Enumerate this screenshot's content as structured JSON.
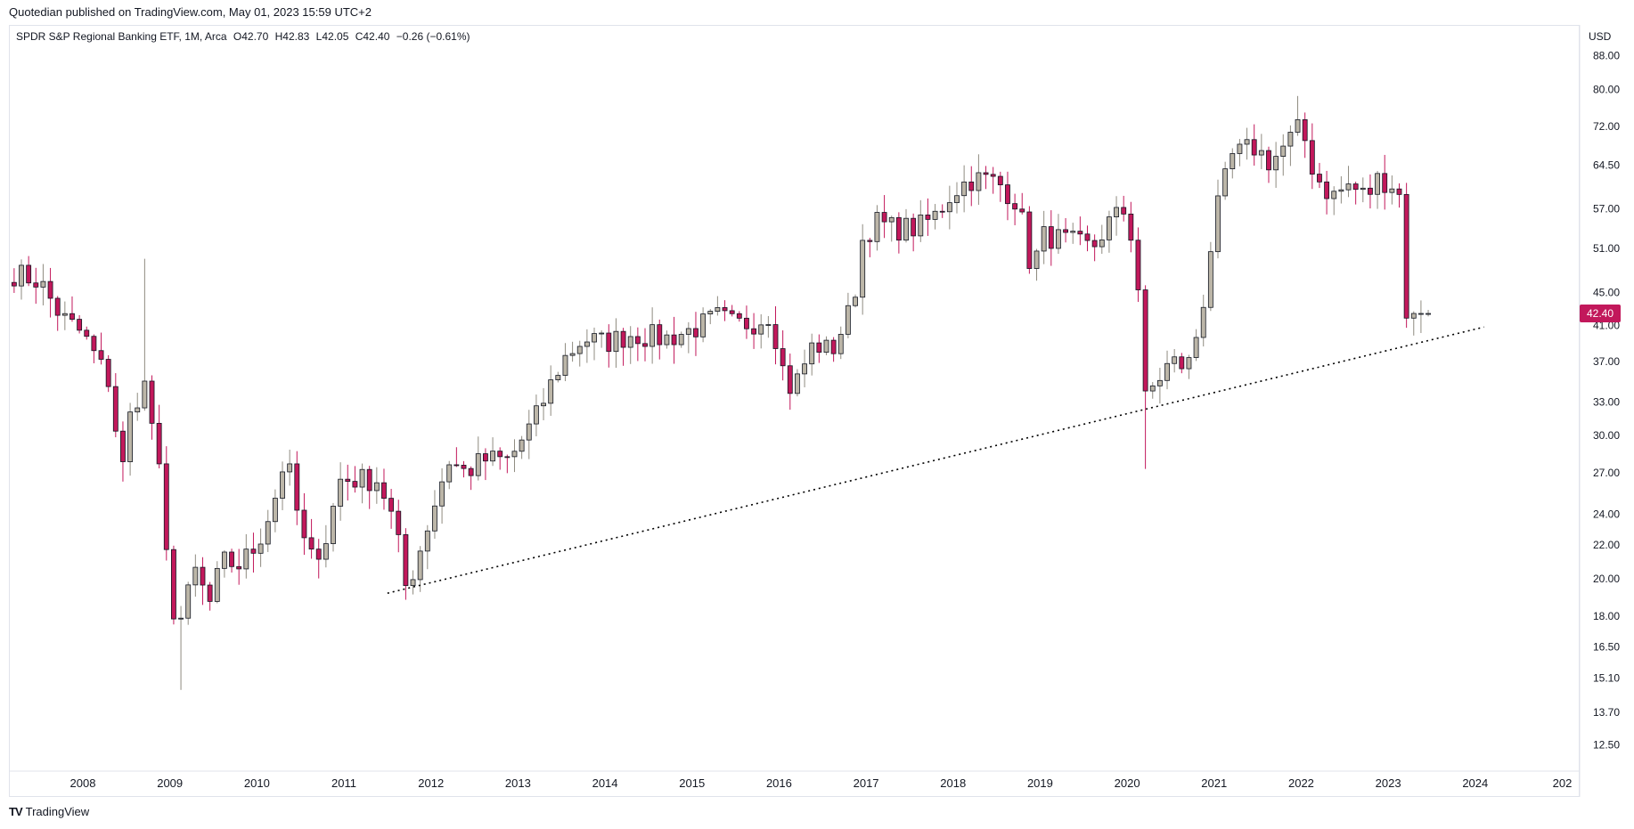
{
  "header": {
    "published": "Quotedian published on TradingView.com, May 01, 2023 15:59 UTC+2"
  },
  "legend": {
    "symbol": "SPDR S&P Regional Banking ETF, 1M, Arca",
    "open": "O42.70",
    "high": "H42.83",
    "low": "L42.05",
    "close": "C42.40",
    "change": "−0.26 (−0.61%)"
  },
  "currency": "USD",
  "last_price_label": "42.40",
  "brand": {
    "name": "TradingView",
    "logo": "TV"
  },
  "colors": {
    "up": "#bcb6a8",
    "down": "#c2185b",
    "badge": "#c2185b",
    "trend": "#000000"
  },
  "chart_data": {
    "type": "candlestick",
    "y_scale": "log",
    "ylim": [
      11.6,
      96
    ],
    "xlim": [
      2007.15,
      2025.2
    ],
    "y_ticks": [
      "88.00",
      "80.00",
      "72.00",
      "64.50",
      "57.00",
      "51.00",
      "45.00",
      "41.00",
      "37.00",
      "33.00",
      "30.00",
      "27.00",
      "24.00",
      "22.00",
      "20.00",
      "18.00",
      "16.50",
      "15.10",
      "13.70",
      "12.50"
    ],
    "x_ticks": [
      "2008",
      "2009",
      "2010",
      "2011",
      "2012",
      "2013",
      "2014",
      "2015",
      "2016",
      "2017",
      "2018",
      "2019",
      "2020",
      "2021",
      "2022",
      "2023",
      "2024",
      "202"
    ],
    "anchors": [
      [
        2007.21,
        47.5
      ],
      [
        2007.5,
        46.5
      ],
      [
        2007.75,
        42
      ],
      [
        2008.0,
        40
      ],
      [
        2008.3,
        35
      ],
      [
        2008.45,
        27
      ],
      [
        2008.55,
        32
      ],
      [
        2008.7,
        35
      ],
      [
        2008.85,
        29
      ],
      [
        2009.0,
        19
      ],
      [
        2009.1,
        17.5
      ],
      [
        2009.3,
        20.5
      ],
      [
        2009.45,
        18.5
      ],
      [
        2009.6,
        21
      ],
      [
        2009.8,
        20.8
      ],
      [
        2010.0,
        22
      ],
      [
        2010.2,
        25
      ],
      [
        2010.33,
        28.5
      ],
      [
        2010.5,
        23
      ],
      [
        2010.6,
        21
      ],
      [
        2010.8,
        22.5
      ],
      [
        2010.95,
        26.5
      ],
      [
        2011.2,
        26.5
      ],
      [
        2011.4,
        26.5
      ],
      [
        2011.6,
        23
      ],
      [
        2011.7,
        19.5
      ],
      [
        2011.8,
        20.5
      ],
      [
        2012.0,
        24
      ],
      [
        2012.2,
        28
      ],
      [
        2012.4,
        27
      ],
      [
        2012.6,
        28
      ],
      [
        2012.9,
        28
      ],
      [
        2013.2,
        31.5
      ],
      [
        2013.5,
        37
      ],
      [
        2013.75,
        39.5
      ],
      [
        2014.0,
        39
      ],
      [
        2014.3,
        40
      ],
      [
        2014.7,
        39.5
      ],
      [
        2015.0,
        40.5
      ],
      [
        2015.3,
        42
      ],
      [
        2015.5,
        41
      ],
      [
        2015.75,
        41.5
      ],
      [
        2015.9,
        42.5
      ],
      [
        2016.05,
        36
      ],
      [
        2016.15,
        34
      ],
      [
        2016.4,
        39
      ],
      [
        2016.6,
        38
      ],
      [
        2016.85,
        43.5
      ],
      [
        2016.95,
        52
      ],
      [
        2017.1,
        55
      ],
      [
        2017.3,
        54
      ],
      [
        2017.6,
        54
      ],
      [
        2017.8,
        56
      ],
      [
        2018.0,
        60
      ],
      [
        2018.2,
        62
      ],
      [
        2018.4,
        62
      ],
      [
        2018.55,
        61
      ],
      [
        2018.75,
        58
      ],
      [
        2018.9,
        48
      ],
      [
        2019.05,
        53
      ],
      [
        2019.3,
        52
      ],
      [
        2019.6,
        51
      ],
      [
        2019.8,
        55
      ],
      [
        2020.0,
        57
      ],
      [
        2020.12,
        47
      ],
      [
        2020.2,
        33
      ],
      [
        2020.3,
        34.5
      ],
      [
        2020.5,
        37
      ],
      [
        2020.7,
        36.5
      ],
      [
        2020.85,
        42
      ],
      [
        2021.0,
        55
      ],
      [
        2021.2,
        66
      ],
      [
        2021.45,
        68
      ],
      [
        2021.65,
        65
      ],
      [
        2021.85,
        69
      ],
      [
        2022.0,
        72
      ],
      [
        2022.15,
        63
      ],
      [
        2022.35,
        59
      ],
      [
        2022.55,
        61
      ],
      [
        2022.75,
        59
      ],
      [
        2022.9,
        62.5
      ],
      [
        2023.0,
        61.3
      ],
      [
        2023.12,
        61
      ],
      [
        2023.2,
        42.8
      ],
      [
        2023.26,
        42.4
      ]
    ],
    "trendline": [
      [
        2011.5,
        19.2
      ],
      [
        2024.1,
        40.8
      ]
    ]
  }
}
